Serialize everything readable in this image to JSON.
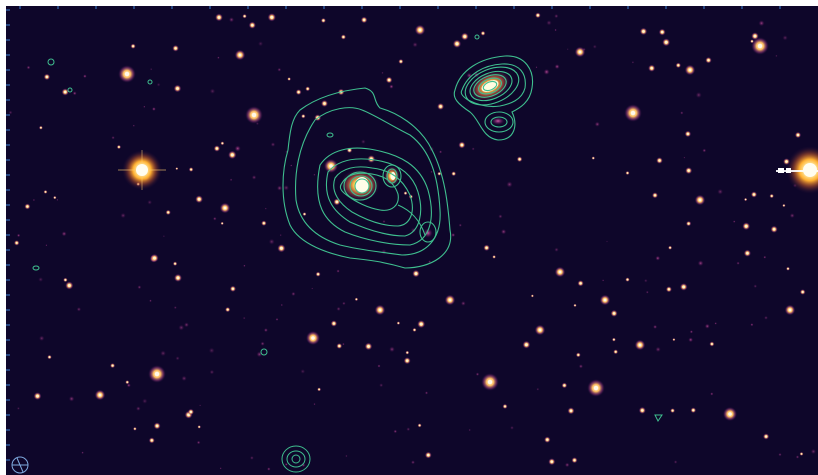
{
  "image": {
    "type": "astronomical-field",
    "description_colors": {
      "background": "#0b0625",
      "contour": "#3fbf8f",
      "star_core": "#fff6e0",
      "star_halo": "#ffb030",
      "faint_source": "#c04aa0",
      "axis_ticks": "#3a7fd0"
    }
  }
}
